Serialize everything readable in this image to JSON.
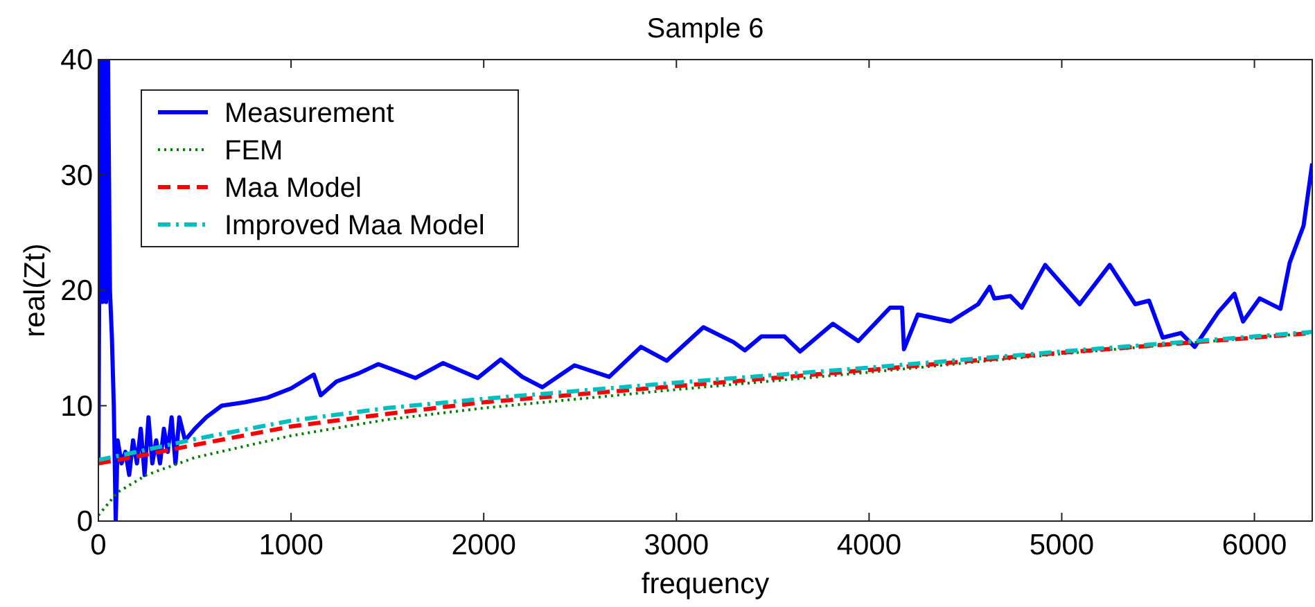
{
  "chart_data": {
    "type": "line",
    "title": "Sample 6",
    "xlabel": "frequency",
    "ylabel": "real(Zt)",
    "xlim": [
      0,
      6300
    ],
    "xticks": [
      0,
      1000,
      2000,
      3000,
      4000,
      5000,
      6000
    ],
    "ylim": [
      0,
      40
    ],
    "yticks": [
      0,
      10,
      20,
      30,
      40
    ],
    "grid": false,
    "legend": "top left",
    "series": [
      {
        "name": "Measurement",
        "color": "#0000ff",
        "line_style": "solid",
        "x": [
          0,
          10,
          20,
          30,
          40,
          50,
          60,
          70,
          80,
          90,
          100,
          120,
          140,
          160,
          180,
          200,
          220,
          240,
          260,
          280,
          300,
          320,
          340,
          360,
          380,
          400,
          420,
          450,
          500,
          560,
          640,
          760,
          877,
          1000,
          1118,
          1154,
          1236,
          1350,
          1453,
          1550,
          1645,
          1789,
          1968,
          2088,
          2200,
          2304,
          2471,
          2651,
          2816,
          2950,
          3140,
          3297,
          3355,
          3441,
          3561,
          3642,
          3812,
          3944,
          4109,
          4171,
          4181,
          4253,
          4423,
          4566,
          4626,
          4650,
          4734,
          4792,
          4914,
          5093,
          5249,
          5381,
          5453,
          5524,
          5618,
          5690,
          5812,
          5896,
          5941,
          6027,
          6135,
          6183,
          6255,
          6300
        ],
        "values": [
          5,
          40,
          19,
          40,
          19,
          40,
          20,
          16,
          10,
          0,
          7,
          5,
          6,
          4,
          7,
          5,
          8,
          4,
          9,
          5,
          7,
          5,
          8,
          6,
          9,
          5,
          9,
          7,
          8,
          9,
          10,
          10.3,
          10.7,
          11.5,
          12.7,
          10.9,
          12.1,
          12.8,
          13.6,
          13.0,
          12.4,
          13.7,
          12.4,
          14.0,
          12.5,
          11.6,
          13.5,
          12.5,
          15.1,
          13.9,
          16.8,
          15.5,
          14.8,
          16.0,
          16.0,
          14.7,
          17.1,
          15.6,
          18.5,
          18.5,
          14.9,
          17.9,
          17.3,
          18.8,
          20.3,
          19.3,
          19.5,
          18.5,
          22.2,
          18.8,
          22.2,
          18.8,
          19.1,
          15.9,
          16.3,
          15.1,
          18.1,
          19.7,
          17.3,
          19.3,
          18.4,
          22.4,
          25.6,
          31
        ]
      },
      {
        "name": "FEM",
        "color": "#008000",
        "line_style": "dotted",
        "x": [
          0,
          100,
          250,
          500,
          1000,
          1500,
          2000,
          3000,
          4000,
          5000,
          6000,
          6300
        ],
        "values": [
          0.5,
          2.5,
          4.0,
          5.5,
          7.4,
          8.8,
          9.8,
          11.4,
          12.9,
          14.5,
          15.9,
          16.3
        ]
      },
      {
        "name": "Maa Model",
        "color": "#ff0000",
        "line_style": "dashed",
        "x": [
          0,
          200,
          500,
          1000,
          1500,
          2000,
          3000,
          4000,
          5000,
          6000,
          6300
        ],
        "values": [
          5.0,
          5.6,
          6.6,
          8.2,
          9.3,
          10.3,
          11.7,
          13.1,
          14.6,
          15.9,
          16.3
        ]
      },
      {
        "name": "Improved Maa Model",
        "color": "#00bfbf",
        "line_style": "dashdot",
        "x": [
          0,
          200,
          500,
          1000,
          1500,
          2000,
          3000,
          4000,
          5000,
          6000,
          6300
        ],
        "values": [
          5.3,
          6.0,
          7.1,
          8.7,
          9.8,
          10.6,
          12.0,
          13.3,
          14.7,
          16.0,
          16.4
        ]
      }
    ]
  }
}
